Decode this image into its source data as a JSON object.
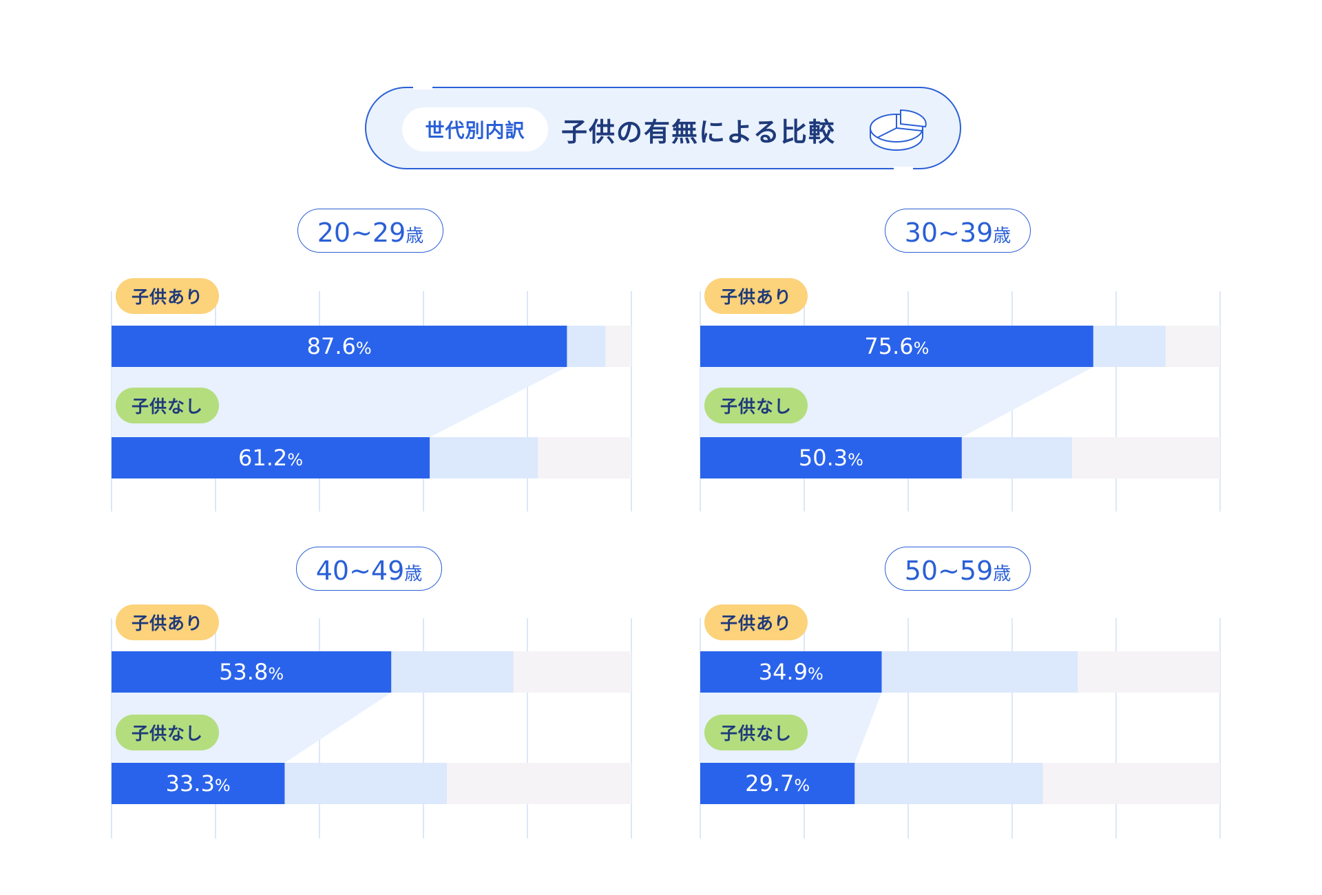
{
  "header": {
    "subtitle": "世代別内訳",
    "title": "子供の有無による比較",
    "icon": "pie-chart-icon",
    "border_color": "#2a5fd6",
    "background_color": "#eaf2fd"
  },
  "colors": {
    "value_bar": "#2a63eb",
    "mid_segment": "#dce8fc",
    "track": "#f5f3f5",
    "connector": "#e8f1fd",
    "pill_with_children": "#fcd27a",
    "pill_without_children": "#b4dd7e",
    "gridline": "#cfdff7"
  },
  "chart_data": [
    {
      "type": "bar",
      "age_range": "20~29",
      "age_unit": "歳",
      "categories": [
        "子供あり",
        "子供なし"
      ],
      "values": [
        87.6,
        61.2
      ],
      "value_labels": [
        "87.6",
        "61.2"
      ],
      "unit": "%",
      "mid_segment_end": [
        95,
        82
      ],
      "xlim": [
        0,
        100
      ],
      "grid": true
    },
    {
      "type": "bar",
      "age_range": "30~39",
      "age_unit": "歳",
      "categories": [
        "子供あり",
        "子供なし"
      ],
      "values": [
        75.6,
        50.3
      ],
      "value_labels": [
        "75.6",
        "50.3"
      ],
      "unit": "%",
      "mid_segment_end": [
        89.5,
        71.5
      ],
      "xlim": [
        0,
        100
      ],
      "grid": true
    },
    {
      "type": "bar",
      "age_range": "40~49",
      "age_unit": "歳",
      "categories": [
        "子供あり",
        "子供なし"
      ],
      "values": [
        53.8,
        33.3
      ],
      "value_labels": [
        "53.8",
        "33.3"
      ],
      "unit": "%",
      "mid_segment_end": [
        77.3,
        64.5
      ],
      "xlim": [
        0,
        100
      ],
      "grid": true
    },
    {
      "type": "bar",
      "age_range": "50~59",
      "age_unit": "歳",
      "categories": [
        "子供あり",
        "子供なし"
      ],
      "values": [
        34.9,
        29.7
      ],
      "value_labels": [
        "34.9",
        "29.7"
      ],
      "unit": "%",
      "mid_segment_end": [
        72.6,
        65.9
      ],
      "xlim": [
        0,
        100
      ],
      "grid": true
    }
  ]
}
